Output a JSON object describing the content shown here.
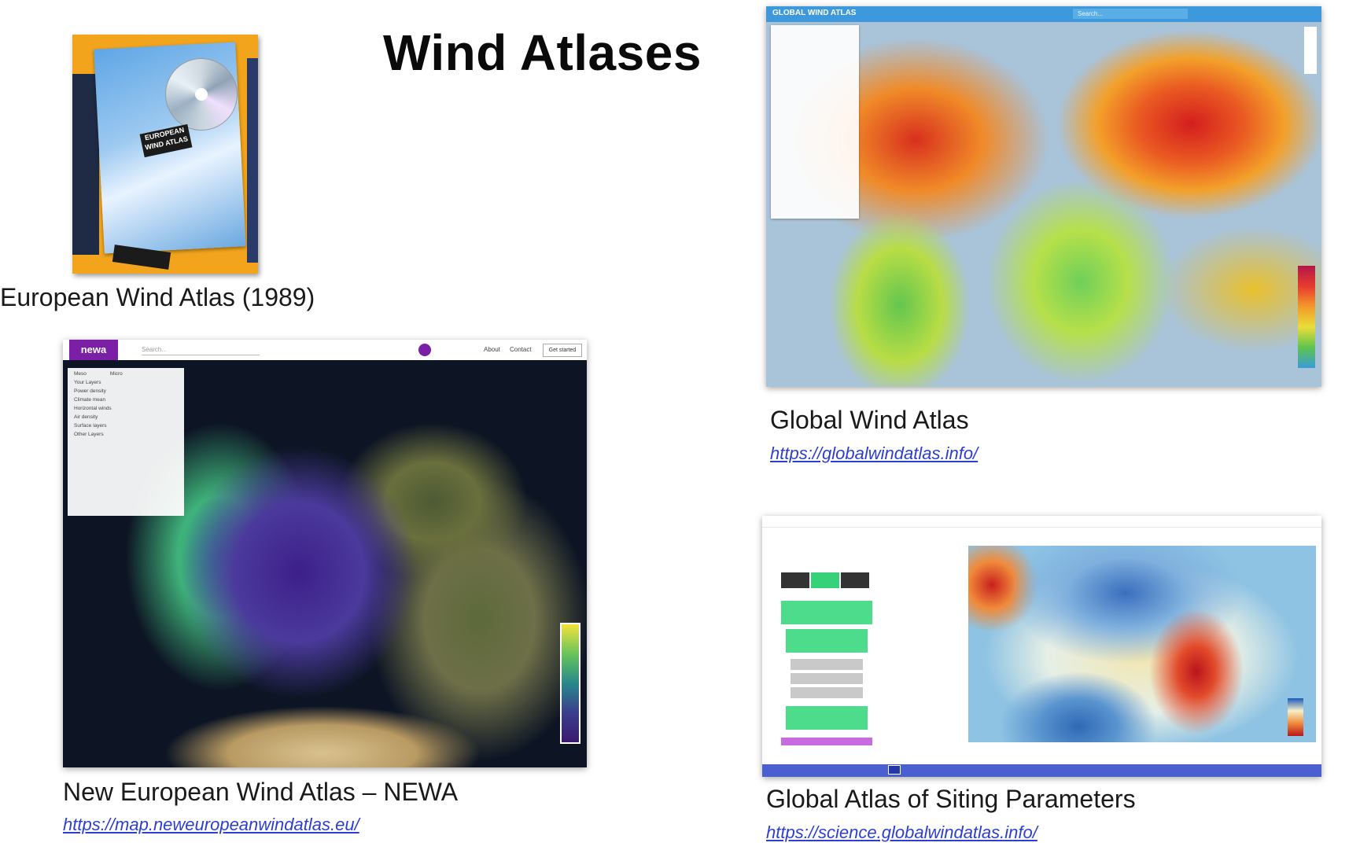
{
  "slide": {
    "title": "Wind Atlases"
  },
  "european_atlas": {
    "caption": "European Wind Atlas (1989)",
    "cover_title": "EUROPEAN WIND ATLAS"
  },
  "global_wind_atlas": {
    "caption": "Global Wind Atlas",
    "link": "https://globalwindatlas.info/",
    "app_title": "GLOBAL WIND ATLAS",
    "search_placeholder": "Search..."
  },
  "newa": {
    "caption": "New European Wind Atlas – NEWA",
    "link": "https://map.neweuropeanwindatlas.eu/",
    "logo": "newa",
    "search_placeholder": "Search...",
    "nav": [
      "About",
      "Contact"
    ],
    "get_started": "Get started",
    "panel_tabs": [
      "Meso",
      "Micro"
    ],
    "panel_items": [
      "Your Layers",
      "Power density",
      "Climate mean",
      "Horizontal winds",
      "Air density",
      "Surface layers",
      "Other Layers"
    ]
  },
  "gasp": {
    "caption": "Global Atlas of Siting Parameters",
    "link": "https://science.globalwindatlas.info/"
  },
  "colors": {
    "link": "#2c3fd1",
    "gwa_bar": "#3d98dc",
    "newa_purple": "#7a1fa6",
    "gasp_green": "#4cdc8c",
    "gasp_footer": "#4a5fd0"
  }
}
